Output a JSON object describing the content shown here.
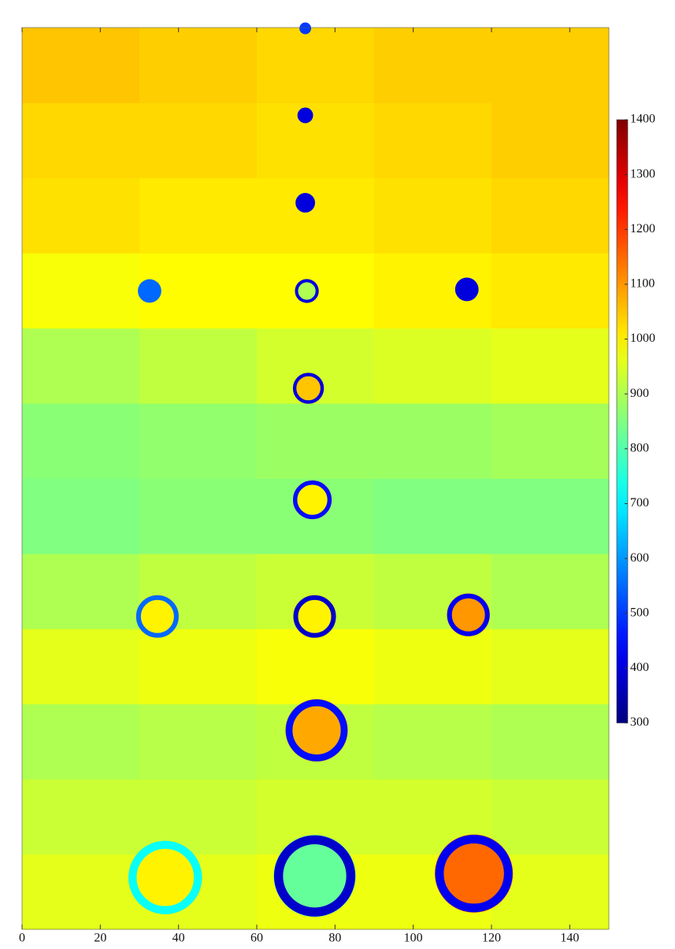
{
  "chart_data": {
    "type": "heatmap",
    "colormap": "jet",
    "xlim": [
      0,
      150
    ],
    "xticks": [
      0,
      20,
      40,
      60,
      80,
      100,
      120,
      140
    ],
    "ylim": [
      0,
      228
    ],
    "clim": [
      300,
      1400
    ],
    "cticks": [
      300,
      400,
      500,
      600,
      700,
      800,
      900,
      1000,
      1100,
      1200,
      1300,
      1400
    ],
    "x": [
      15,
      45,
      75,
      105,
      135
    ],
    "y": [
      9.5,
      28.5,
      47.5,
      66.5,
      85.5,
      104.5,
      123.5,
      142.5,
      161.5,
      180.5,
      199.5,
      218.5
    ],
    "z": [
      [
        960,
        960,
        970,
        970,
        960
      ],
      [
        930,
        930,
        940,
        940,
        930
      ],
      [
        900,
        910,
        920,
        910,
        900
      ],
      [
        960,
        970,
        980,
        970,
        960
      ],
      [
        900,
        920,
        930,
        920,
        900
      ],
      [
        850,
        860,
        860,
        850,
        850
      ],
      [
        860,
        870,
        880,
        880,
        890
      ],
      [
        900,
        920,
        940,
        950,
        960
      ],
      [
        980,
        990,
        990,
        1000,
        1010
      ],
      [
        1020,
        1010,
        1010,
        1020,
        1030
      ],
      [
        1030,
        1030,
        1020,
        1030,
        1040
      ],
      [
        1050,
        1040,
        1030,
        1040,
        1040
      ]
    ],
    "rings": {
      "x": [
        72.4,
        72.4,
        72.4,
        32.6,
        72.8,
        113.7,
        73.2,
        74.2,
        34.6,
        74.8,
        114.1,
        75.3,
        36.6,
        74.8,
        115.5
      ],
      "y": [
        227.8,
        205.8,
        183.7,
        161.4,
        161.4,
        161.8,
        136.8,
        108.6,
        79.1,
        79.1,
        79.5,
        50.3,
        13.1,
        13.5,
        14.1
      ],
      "r": [
        1.5,
        2,
        2.5,
        3,
        3,
        3,
        4,
        5,
        5.5,
        5.5,
        5.5,
        8,
        9.5,
        10.5,
        10
      ],
      "values": [
        500,
        400,
        400,
        550,
        400,
        400,
        400,
        450,
        550,
        380,
        420,
        450,
        720,
        380,
        420
      ],
      "inner": [
        null,
        null,
        null,
        null,
        900,
        null,
        1050,
        1000,
        1000,
        1000,
        1100,
        1080,
        1000,
        820,
        1150
      ]
    }
  }
}
